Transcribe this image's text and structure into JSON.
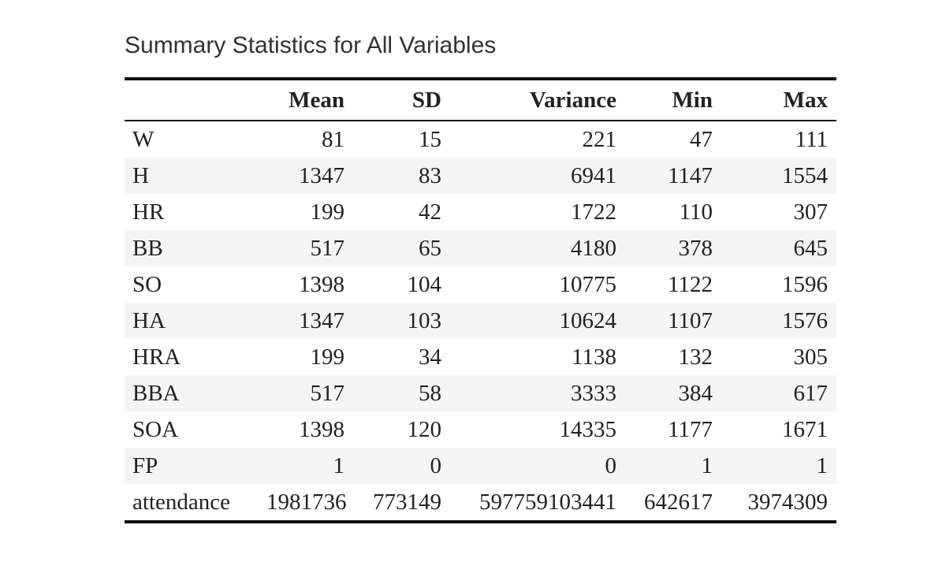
{
  "table": {
    "caption": "Summary Statistics for All Variables",
    "headers": [
      "",
      "Mean",
      "SD",
      "Variance",
      "Min",
      "Max"
    ],
    "rows": [
      [
        "W",
        "81",
        "15",
        "221",
        "47",
        "111"
      ],
      [
        "H",
        "1347",
        "83",
        "6941",
        "1147",
        "1554"
      ],
      [
        "HR",
        "199",
        "42",
        "1722",
        "110",
        "307"
      ],
      [
        "BB",
        "517",
        "65",
        "4180",
        "378",
        "645"
      ],
      [
        "SO",
        "1398",
        "104",
        "10775",
        "1122",
        "1596"
      ],
      [
        "HA",
        "1347",
        "103",
        "10624",
        "1107",
        "1576"
      ],
      [
        "HRA",
        "199",
        "34",
        "1138",
        "132",
        "305"
      ],
      [
        "BBA",
        "517",
        "58",
        "3333",
        "384",
        "617"
      ],
      [
        "SOA",
        "1398",
        "120",
        "14335",
        "1177",
        "1671"
      ],
      [
        "FP",
        "1",
        "0",
        "0",
        "1",
        "1"
      ],
      [
        "attendance",
        "1981736",
        "773149",
        "597759103441",
        "642617",
        "3974309"
      ]
    ]
  },
  "colors": {
    "text": "#222222",
    "rule": "#111111",
    "stripe": "#f5f5f5"
  }
}
